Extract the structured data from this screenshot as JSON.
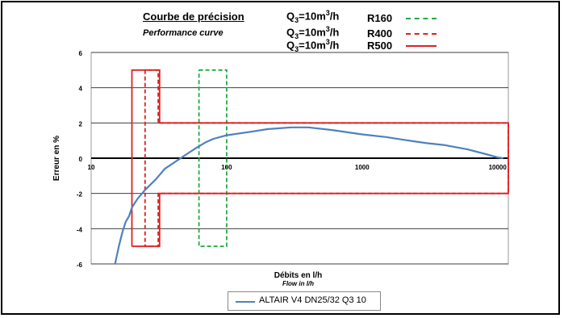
{
  "header": {
    "title": "Courbe de précision",
    "subtitle": "Performance curve",
    "q3_rows": [
      {
        "prefix": "Q",
        "sub": "3",
        "mid": "=10m",
        "sup": "3",
        "suffix": "/h"
      },
      {
        "prefix": "Q",
        "sub": "3",
        "mid": "=10m",
        "sup": "3",
        "suffix": "/h"
      },
      {
        "prefix": "Q",
        "sub": "3",
        "mid": "=10m",
        "sup": "3",
        "suffix": "/h"
      }
    ],
    "classes": [
      {
        "label": "R160",
        "color": "#22aa44",
        "style": "dashed"
      },
      {
        "label": "R400",
        "color": "#dd2222",
        "style": "dashed"
      },
      {
        "label": "R500",
        "color": "#dd2222",
        "style": "solid"
      }
    ]
  },
  "chart_data": {
    "type": "line",
    "xscale": "log",
    "xlim": [
      10,
      12000
    ],
    "ylim": [
      -6,
      6
    ],
    "x_ticks": [
      10,
      100,
      1000,
      10000
    ],
    "x_tick_labels": [
      "10",
      "100",
      "1000",
      "10000"
    ],
    "y_ticks": [
      6,
      4,
      2,
      0,
      -2,
      -4,
      -6
    ],
    "y_tick_labels": [
      "6",
      "4",
      "2",
      "0",
      "-2",
      "-4",
      "-6"
    ],
    "grid": "horizontal",
    "xlabel": "Débits en l/h",
    "xlabel_sub": "Flow in l/h",
    "ylabel": "Erreur en %",
    "series": [
      {
        "name": "ALTAIR V4 DN25/32 Q3 10",
        "color": "#4f81bd",
        "points": [
          [
            15,
            -6.0
          ],
          [
            16,
            -5.0
          ],
          [
            17,
            -4.2
          ],
          [
            18,
            -3.6
          ],
          [
            19,
            -3.3
          ],
          [
            20,
            -2.8
          ],
          [
            22,
            -2.3
          ],
          [
            25,
            -1.8
          ],
          [
            30,
            -1.2
          ],
          [
            35,
            -0.6
          ],
          [
            40,
            -0.3
          ],
          [
            50,
            0.2
          ],
          [
            60,
            0.6
          ],
          [
            70,
            0.9
          ],
          [
            80,
            1.1
          ],
          [
            100,
            1.3
          ],
          [
            150,
            1.5
          ],
          [
            200,
            1.65
          ],
          [
            300,
            1.75
          ],
          [
            400,
            1.75
          ],
          [
            600,
            1.6
          ],
          [
            1000,
            1.35
          ],
          [
            1500,
            1.2
          ],
          [
            2000,
            1.05
          ],
          [
            3000,
            0.85
          ],
          [
            4000,
            0.75
          ],
          [
            6000,
            0.5
          ],
          [
            8000,
            0.25
          ],
          [
            10000,
            0.05
          ],
          [
            11000,
            0.0
          ]
        ]
      }
    ],
    "envelopes": [
      {
        "name": "R160",
        "color": "#22aa44",
        "style": "dashed",
        "polyline": [
          [
            62.5,
            5
          ],
          [
            100,
            5
          ],
          [
            100,
            -5
          ],
          [
            62.5,
            -5
          ],
          [
            62.5,
            5
          ]
        ]
      },
      {
        "name": "R400",
        "color": "#dd2222",
        "style": "dashed",
        "polyline": [
          [
            25,
            5
          ],
          [
            25,
            -5
          ],
          [
            31.25,
            -5
          ],
          [
            31.25,
            -2
          ],
          [
            12000,
            -2
          ],
          [
            12000,
            2
          ],
          [
            31.25,
            2
          ],
          [
            31.25,
            5
          ],
          [
            25,
            5
          ]
        ]
      },
      {
        "name": "R500",
        "color": "#dd2222",
        "style": "solid",
        "polyline": [
          [
            20,
            -5
          ],
          [
            20,
            5
          ],
          [
            32,
            5
          ],
          [
            32,
            2
          ],
          [
            12000,
            2
          ],
          [
            12000,
            -2
          ],
          [
            32,
            -2
          ],
          [
            32,
            -5
          ],
          [
            20,
            -5
          ]
        ]
      }
    ]
  },
  "legend": {
    "label": "ALTAIR V4 DN25/32 Q3 10"
  }
}
